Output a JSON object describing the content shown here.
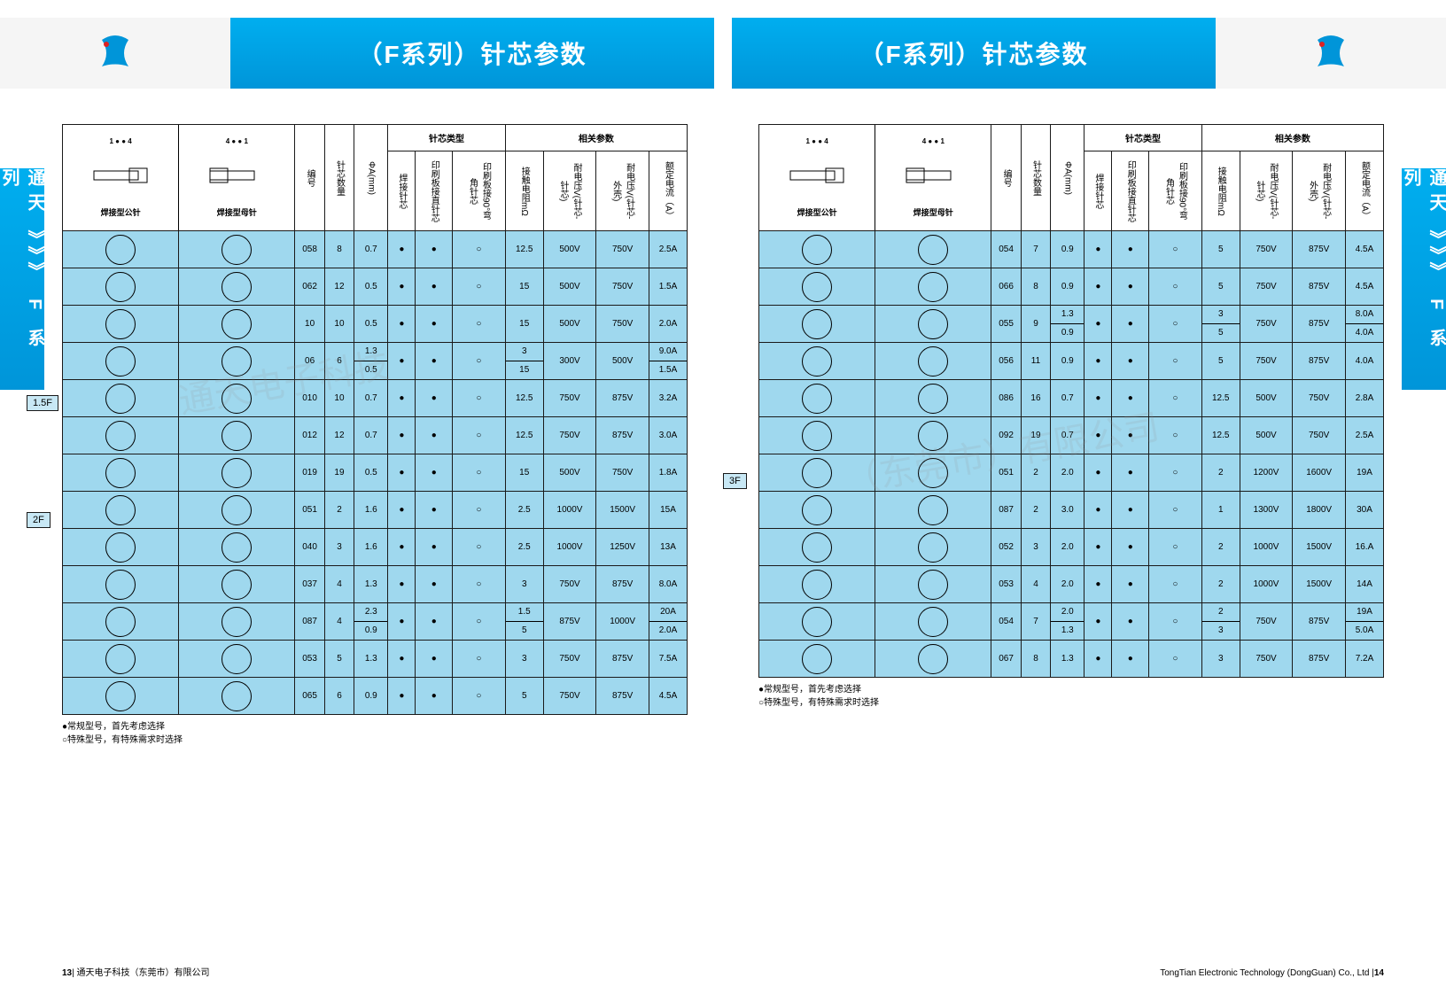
{
  "titles": {
    "left": "（F系列）针芯参数",
    "right": "（F系列）针芯参数"
  },
  "side_tab": "通天 》》》 F 系 列",
  "header_labels": {
    "male": "焊接型公针",
    "female": "焊接型母针"
  },
  "columns": [
    "编号",
    "针芯数量",
    "ΦA(mm)",
    "焊接针芯",
    "印刷板接直针芯",
    "印刷板接90°弯角针芯",
    "接触电阻mΩ",
    "耐电压V(针芯-针芯)",
    "耐电压V(针芯-外壳)",
    "额定电流（A）"
  ],
  "left_table": {
    "sections": [
      {
        "tag": "1.5F",
        "tag_row": 4,
        "rows": [
          {
            "no": "058",
            "pins": "8",
            "dia": "0.7",
            "t1": "●",
            "t2": "●",
            "t3": "○",
            "res": "12.5",
            "v1": "500V",
            "v2": "750V",
            "amp": "2.5A"
          },
          {
            "no": "062",
            "pins": "12",
            "dia": "0.5",
            "t1": "●",
            "t2": "●",
            "t3": "○",
            "res": "15",
            "v1": "500V",
            "v2": "750V",
            "amp": "1.5A"
          },
          {
            "no": "10",
            "pins": "10",
            "dia": "0.5",
            "t1": "●",
            "t2": "●",
            "t3": "○",
            "res": "15",
            "v1": "500V",
            "v2": "750V",
            "amp": "2.0A"
          },
          {
            "no": "06",
            "pins": "6",
            "dia": "1.3 / 0.5",
            "t1": "●",
            "t2": "●",
            "t3": "○",
            "res": "3 / 15",
            "v1": "300V",
            "v2": "500V",
            "amp": "9.0A / 1.5A",
            "split": true,
            "p_split": [
              "2",
              "4"
            ]
          },
          {
            "no": "010",
            "pins": "10",
            "dia": "0.7",
            "t1": "●",
            "t2": "●",
            "t3": "○",
            "res": "12.5",
            "v1": "750V",
            "v2": "875V",
            "amp": "3.2A"
          },
          {
            "no": "012",
            "pins": "12",
            "dia": "0.7",
            "t1": "●",
            "t2": "●",
            "t3": "○",
            "res": "12.5",
            "v1": "750V",
            "v2": "875V",
            "amp": "3.0A"
          },
          {
            "no": "019",
            "pins": "19",
            "dia": "0.5",
            "t1": "●",
            "t2": "●",
            "t3": "○",
            "res": "15",
            "v1": "500V",
            "v2": "750V",
            "amp": "1.8A"
          }
        ]
      },
      {
        "tag": "2F",
        "tag_row": 0,
        "rows": [
          {
            "no": "051",
            "pins": "2",
            "dia": "1.6",
            "t1": "●",
            "t2": "●",
            "t3": "○",
            "res": "2.5",
            "v1": "1000V",
            "v2": "1500V",
            "amp": "15A"
          },
          {
            "no": "040",
            "pins": "3",
            "dia": "1.6",
            "t1": "●",
            "t2": "●",
            "t3": "○",
            "res": "2.5",
            "v1": "1000V",
            "v2": "1250V",
            "amp": "13A"
          },
          {
            "no": "037",
            "pins": "4",
            "dia": "1.3",
            "t1": "●",
            "t2": "●",
            "t3": "○",
            "res": "3",
            "v1": "750V",
            "v2": "875V",
            "amp": "8.0A"
          },
          {
            "no": "087",
            "pins": "4",
            "dia": "2.3 / 0.9",
            "t1": "●",
            "t2": "●",
            "t3": "○",
            "res": "1.5 / 5",
            "v1": "875V",
            "v2": "1000V",
            "amp": "20A / 2.0A",
            "split": true,
            "p_split": [
              "2",
              "2"
            ]
          },
          {
            "no": "053",
            "pins": "5",
            "dia": "1.3",
            "t1": "●",
            "t2": "●",
            "t3": "○",
            "res": "3",
            "v1": "750V",
            "v2": "875V",
            "amp": "7.5A"
          },
          {
            "no": "065",
            "pins": "6",
            "dia": "0.9",
            "t1": "●",
            "t2": "●",
            "t3": "○",
            "res": "5",
            "v1": "750V",
            "v2": "875V",
            "amp": "4.5A"
          }
        ]
      }
    ]
  },
  "right_table": {
    "sections": [
      {
        "tag": "",
        "rows": [
          {
            "no": "054",
            "pins": "7",
            "dia": "0.9",
            "t1": "●",
            "t2": "●",
            "t3": "○",
            "res": "5",
            "v1": "750V",
            "v2": "875V",
            "amp": "4.5A"
          },
          {
            "no": "066",
            "pins": "8",
            "dia": "0.9",
            "t1": "●",
            "t2": "●",
            "t3": "○",
            "res": "5",
            "v1": "750V",
            "v2": "875V",
            "amp": "4.5A"
          },
          {
            "no": "055",
            "pins": "9",
            "dia": "1.3 / 0.9",
            "t1": "●",
            "t2": "●",
            "t3": "○",
            "res": "3 / 5",
            "v1": "750V",
            "v2": "875V",
            "amp": "8.0A / 4.0A",
            "split": true,
            "p_split": [
              "1",
              "8"
            ]
          },
          {
            "no": "056",
            "pins": "11",
            "dia": "0.9",
            "t1": "●",
            "t2": "●",
            "t3": "○",
            "res": "5",
            "v1": "750V",
            "v2": "875V",
            "amp": "4.0A"
          },
          {
            "no": "086",
            "pins": "16",
            "dia": "0.7",
            "t1": "●",
            "t2": "●",
            "t3": "○",
            "res": "12.5",
            "v1": "500V",
            "v2": "750V",
            "amp": "2.8A"
          },
          {
            "no": "092",
            "pins": "19",
            "dia": "0.7",
            "t1": "●",
            "t2": "●",
            "t3": "○",
            "res": "12.5",
            "v1": "500V",
            "v2": "750V",
            "amp": "2.5A"
          }
        ]
      },
      {
        "tag": "3F",
        "tag_row": 0,
        "rows": [
          {
            "no": "051",
            "pins": "2",
            "dia": "2.0",
            "t1": "●",
            "t2": "●",
            "t3": "○",
            "res": "2",
            "v1": "1200V",
            "v2": "1600V",
            "amp": "19A"
          },
          {
            "no": "087",
            "pins": "2",
            "dia": "3.0",
            "t1": "●",
            "t2": "●",
            "t3": "○",
            "res": "1",
            "v1": "1300V",
            "v2": "1800V",
            "amp": "30A"
          },
          {
            "no": "052",
            "pins": "3",
            "dia": "2.0",
            "t1": "●",
            "t2": "●",
            "t3": "○",
            "res": "2",
            "v1": "1000V",
            "v2": "1500V",
            "amp": "16.A"
          },
          {
            "no": "053",
            "pins": "4",
            "dia": "2.0",
            "t1": "●",
            "t2": "●",
            "t3": "○",
            "res": "2",
            "v1": "1000V",
            "v2": "1500V",
            "amp": "14A"
          },
          {
            "no": "054",
            "pins": "7",
            "dia": "2.0 / 1.3",
            "t1": "●",
            "t2": "●",
            "t3": "○",
            "res": "2 / 3",
            "v1": "750V",
            "v2": "875V",
            "amp": "19A / 5.0A",
            "split": true,
            "p_split": [
              "1",
              "6"
            ]
          },
          {
            "no": "067",
            "pins": "8",
            "dia": "1.3",
            "t1": "●",
            "t2": "●",
            "t3": "○",
            "res": "3",
            "v1": "750V",
            "v2": "875V",
            "amp": "7.2A"
          }
        ]
      }
    ]
  },
  "footnotes": [
    "●常规型号，首先考虑选择",
    "○特殊型号，有特殊需求时选择"
  ],
  "footer": {
    "left_page": "13",
    "left_co": "通天电子科技（东莞市）有限公司",
    "right_co": "TongTian Electronic Technology (DongGuan) Co., Ltd",
    "right_page": "14"
  },
  "colors": {
    "header_bg": "#00aeef",
    "cell_bg": "#9fd8ee",
    "border": "#1a1a1a"
  }
}
